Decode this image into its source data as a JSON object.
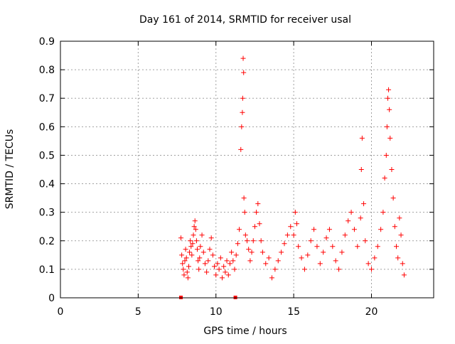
{
  "chart_data": {
    "type": "scatter",
    "title": "Day 161 of 2014, SRMTID for receiver usal",
    "xlabel": "GPS time / hours",
    "ylabel": "SRMTID / TECUs",
    "xlim": [
      0,
      24
    ],
    "ylim": [
      0,
      0.9
    ],
    "xticks": [
      0,
      5,
      10,
      15,
      20
    ],
    "xtick_labels": [
      "0",
      "5",
      "10",
      "15",
      "20"
    ],
    "yticks": [
      0,
      0.1,
      0.2,
      0.3,
      0.4,
      0.5,
      0.6,
      0.7,
      0.8,
      0.9
    ],
    "ytick_labels": [
      "0",
      "0.1",
      "0.2",
      "0.3",
      "0.4",
      "0.5",
      "0.6",
      "0.7",
      "0.8",
      "0.9"
    ],
    "grid": true,
    "marker": "+",
    "colors": {
      "series": "#ff0000",
      "axis": "#000000",
      "grid": "#a0a0a0"
    },
    "series": [
      {
        "name": "SRMTID",
        "points": [
          [
            7.75,
            0.21
          ],
          [
            7.8,
            0.15
          ],
          [
            7.85,
            0.12
          ],
          [
            7.9,
            0.1
          ],
          [
            7.95,
            0.08
          ],
          [
            8.0,
            0.13
          ],
          [
            8.05,
            0.17
          ],
          [
            8.1,
            0.14
          ],
          [
            8.15,
            0.09
          ],
          [
            8.2,
            0.07
          ],
          [
            8.25,
            0.11
          ],
          [
            8.3,
            0.16
          ],
          [
            8.35,
            0.2
          ],
          [
            8.4,
            0.18
          ],
          [
            8.45,
            0.15
          ],
          [
            8.5,
            0.19
          ],
          [
            8.55,
            0.22
          ],
          [
            8.6,
            0.25
          ],
          [
            8.65,
            0.27
          ],
          [
            8.7,
            0.24
          ],
          [
            8.75,
            0.2
          ],
          [
            8.8,
            0.17
          ],
          [
            8.85,
            0.13
          ],
          [
            8.9,
            0.1
          ],
          [
            8.95,
            0.14
          ],
          [
            9.0,
            0.18
          ],
          [
            9.1,
            0.22
          ],
          [
            9.2,
            0.16
          ],
          [
            9.3,
            0.12
          ],
          [
            9.4,
            0.09
          ],
          [
            9.5,
            0.13
          ],
          [
            9.6,
            0.17
          ],
          [
            9.7,
            0.21
          ],
          [
            9.8,
            0.15
          ],
          [
            9.9,
            0.11
          ],
          [
            10.0,
            0.08
          ],
          [
            10.1,
            0.12
          ],
          [
            10.2,
            0.1
          ],
          [
            10.3,
            0.14
          ],
          [
            10.4,
            0.07
          ],
          [
            10.5,
            0.11
          ],
          [
            10.6,
            0.09
          ],
          [
            10.7,
            0.13
          ],
          [
            10.8,
            0.08
          ],
          [
            10.9,
            0.12
          ],
          [
            11.0,
            0.16
          ],
          [
            11.1,
            0.13
          ],
          [
            11.2,
            0.1
          ],
          [
            11.3,
            0.15
          ],
          [
            11.4,
            0.19
          ],
          [
            11.5,
            0.24
          ],
          [
            11.6,
            0.52
          ],
          [
            11.65,
            0.6
          ],
          [
            11.7,
            0.65
          ],
          [
            11.72,
            0.7
          ],
          [
            11.75,
            0.84
          ],
          [
            11.78,
            0.79
          ],
          [
            11.8,
            0.35
          ],
          [
            11.85,
            0.3
          ],
          [
            11.9,
            0.22
          ],
          [
            12.0,
            0.2
          ],
          [
            12.1,
            0.17
          ],
          [
            12.2,
            0.13
          ],
          [
            12.3,
            0.16
          ],
          [
            12.4,
            0.2
          ],
          [
            12.5,
            0.25
          ],
          [
            12.6,
            0.3
          ],
          [
            12.7,
            0.33
          ],
          [
            12.8,
            0.26
          ],
          [
            12.9,
            0.2
          ],
          [
            13.0,
            0.16
          ],
          [
            13.2,
            0.12
          ],
          [
            13.4,
            0.14
          ],
          [
            13.6,
            0.07
          ],
          [
            13.8,
            0.1
          ],
          [
            14.0,
            0.13
          ],
          [
            14.2,
            0.16
          ],
          [
            14.4,
            0.19
          ],
          [
            14.6,
            0.22
          ],
          [
            14.8,
            0.25
          ],
          [
            15.0,
            0.22
          ],
          [
            15.1,
            0.3
          ],
          [
            15.2,
            0.26
          ],
          [
            15.3,
            0.18
          ],
          [
            15.5,
            0.14
          ],
          [
            15.7,
            0.1
          ],
          [
            15.9,
            0.15
          ],
          [
            16.1,
            0.2
          ],
          [
            16.3,
            0.24
          ],
          [
            16.5,
            0.18
          ],
          [
            16.7,
            0.12
          ],
          [
            16.9,
            0.16
          ],
          [
            17.1,
            0.21
          ],
          [
            17.3,
            0.24
          ],
          [
            17.5,
            0.18
          ],
          [
            17.7,
            0.13
          ],
          [
            17.9,
            0.1
          ],
          [
            18.1,
            0.16
          ],
          [
            18.3,
            0.22
          ],
          [
            18.5,
            0.27
          ],
          [
            18.7,
            0.3
          ],
          [
            18.9,
            0.24
          ],
          [
            19.1,
            0.18
          ],
          [
            19.3,
            0.28
          ],
          [
            19.35,
            0.45
          ],
          [
            19.4,
            0.56
          ],
          [
            19.5,
            0.33
          ],
          [
            19.6,
            0.2
          ],
          [
            19.8,
            0.12
          ],
          [
            20.0,
            0.1
          ],
          [
            20.2,
            0.14
          ],
          [
            20.4,
            0.18
          ],
          [
            20.6,
            0.24
          ],
          [
            20.75,
            0.3
          ],
          [
            20.85,
            0.42
          ],
          [
            20.95,
            0.5
          ],
          [
            21.0,
            0.6
          ],
          [
            21.05,
            0.7
          ],
          [
            21.1,
            0.73
          ],
          [
            21.15,
            0.66
          ],
          [
            21.2,
            0.56
          ],
          [
            21.3,
            0.45
          ],
          [
            21.4,
            0.35
          ],
          [
            21.5,
            0.25
          ],
          [
            21.6,
            0.18
          ],
          [
            21.7,
            0.14
          ],
          [
            21.8,
            0.28
          ],
          [
            21.9,
            0.22
          ],
          [
            22.0,
            0.12
          ],
          [
            22.1,
            0.08
          ]
        ]
      }
    ],
    "axis_markers": [
      7.75,
      11.25
    ]
  }
}
